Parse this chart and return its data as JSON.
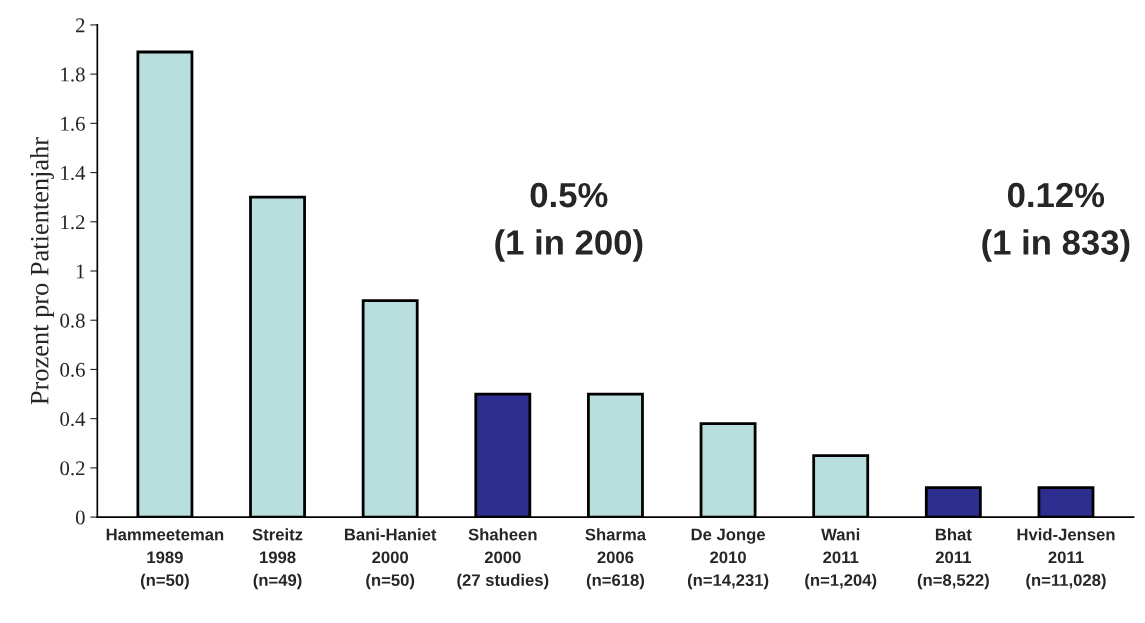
{
  "chart_data": {
    "type": "bar",
    "categories": [
      "Hammeeteman\n1989\n(n=50)",
      "Streitz\n1998\n(n=49)",
      "Bani-Haniet\n2000\n(n=50)",
      "Shaheen\n2000\n(27 studies)",
      "Sharma\n2006\n(n=618)",
      "De Jonge\n2010\n(n=14,231)",
      "Wani\n2011\n(n=1,204)",
      "Bhat\n2011\n(n=8,522)",
      "Hvid-Jensen\n2011\n(n=11,028)"
    ],
    "values": [
      1.89,
      1.3,
      0.88,
      0.5,
      0.5,
      0.38,
      0.25,
      0.12,
      0.12
    ],
    "colors": [
      "#b8dede",
      "#b8dede",
      "#b8dede",
      "#2e2e8e",
      "#b8dede",
      "#b8dede",
      "#b8dede",
      "#2e2e8e",
      "#2e2e8e"
    ],
    "ylabel": "Prozent pro Patientenjahr",
    "ylim": [
      0,
      2
    ],
    "yticks": [
      0,
      0.2,
      0.4,
      0.6,
      0.8,
      1,
      1.2,
      1.4,
      1.6,
      1.8,
      2
    ],
    "annotations": [
      "0.5%\n(1 in 200)",
      "0.12%\n(1 in 833)"
    ],
    "grid": false
  }
}
